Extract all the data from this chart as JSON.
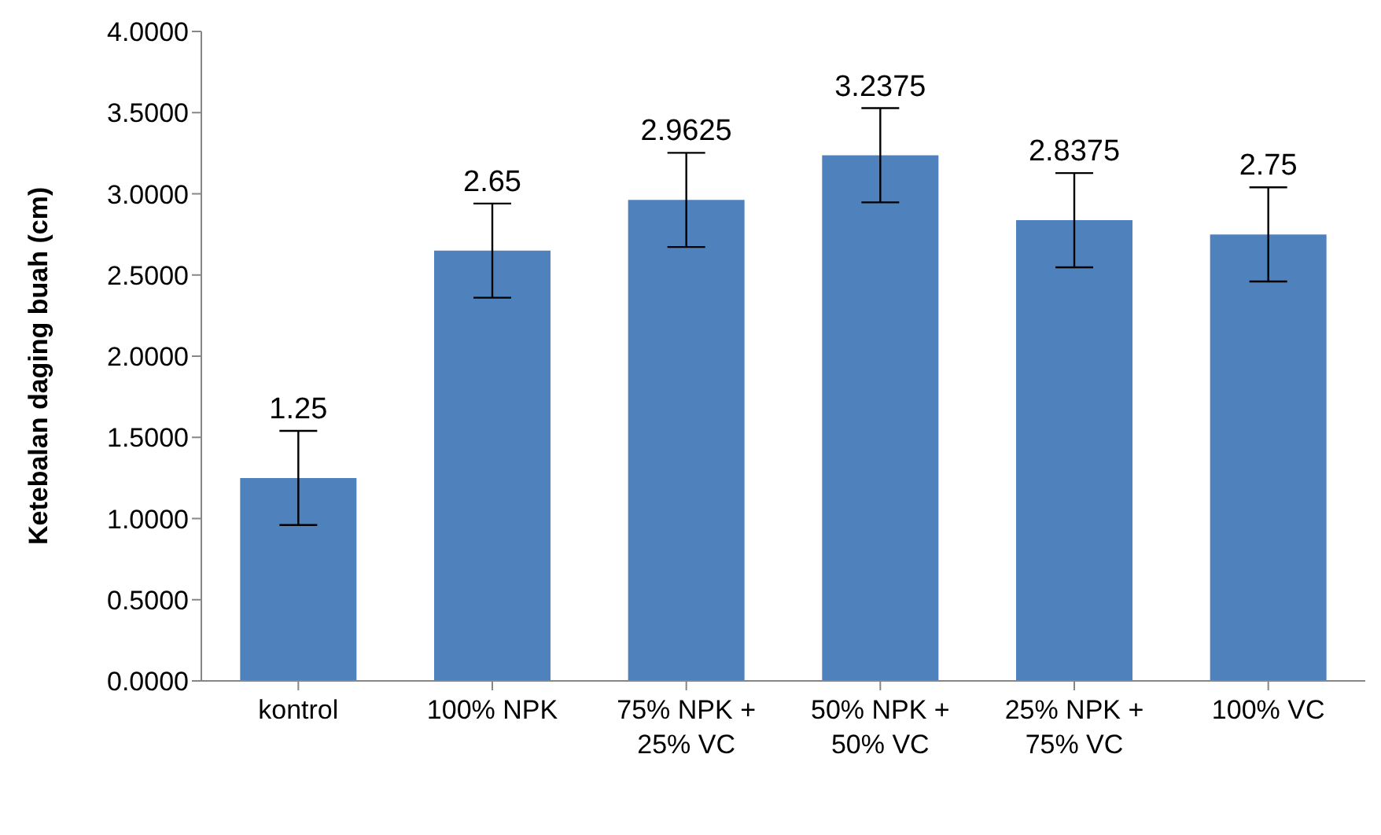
{
  "chart_data": {
    "type": "bar",
    "ylabel": "Ketebalan daging buah (cm)",
    "categories": [
      "kontrol",
      "100% NPK",
      "75% NPK + 25% VC",
      "50% NPK + 50% VC",
      "25% NPK + 75% VC",
      "100% VC"
    ],
    "values": [
      1.25,
      2.65,
      2.9625,
      3.2375,
      2.8375,
      2.75
    ],
    "errors": [
      0.29,
      0.29,
      0.29,
      0.29,
      0.29,
      0.29
    ],
    "color": "#4f81bd",
    "data_labels": true,
    "ylim": [
      0,
      4
    ],
    "yticks": [
      {
        "value": 0,
        "label": "0.0000"
      },
      {
        "value": 0.5,
        "label": "0.5000"
      },
      {
        "value": 1,
        "label": "1.0000"
      },
      {
        "value": 1.5,
        "label": "1.5000"
      },
      {
        "value": 2,
        "label": "2.0000"
      },
      {
        "value": 2.5,
        "label": "2.5000"
      },
      {
        "value": 3,
        "label": "3.0000"
      },
      {
        "value": 3.5,
        "label": "3.5000"
      },
      {
        "value": 4,
        "label": "4.0000"
      }
    ],
    "grid": false,
    "legend": false
  }
}
